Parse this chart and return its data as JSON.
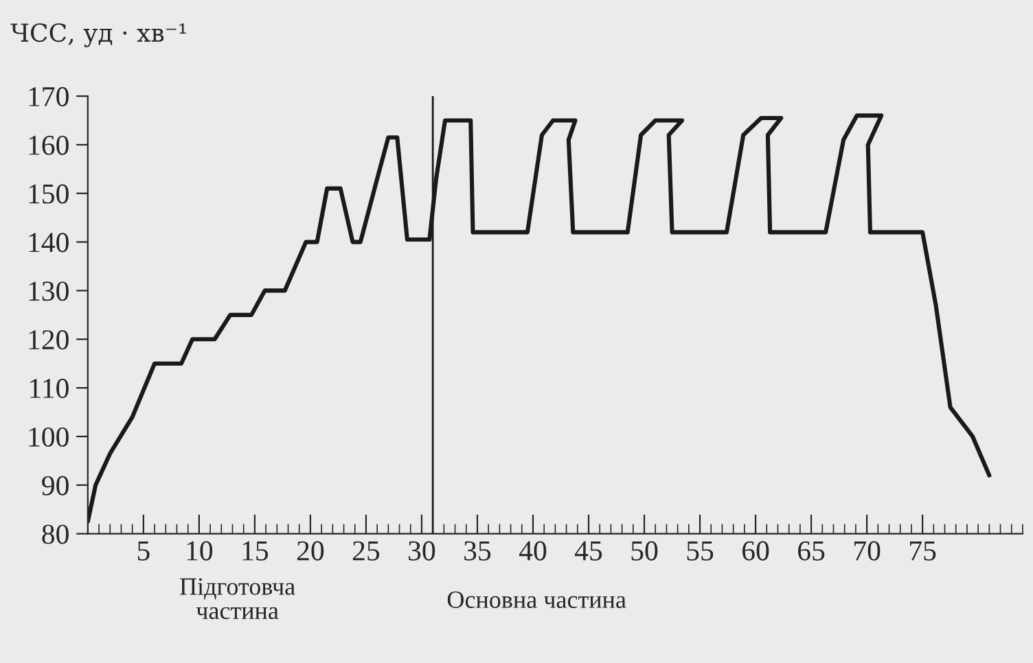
{
  "chart_data": {
    "type": "line",
    "ylabel": "ЧСС, уд · хв⁻¹",
    "annotations": [
      "Підготовча\nчастина",
      "Основна частина"
    ],
    "series": [
      {
        "color": "#1a1a1a",
        "x": [
          0,
          0.7,
          2,
          4,
          6,
          8.4,
          9.4,
          11.4,
          12.8,
          14.7,
          15.9,
          17.7,
          19.6,
          20.6,
          21.5,
          22.7,
          23.8,
          24.5,
          26,
          27,
          27.8,
          28.7,
          30.7,
          31.3,
          32.1,
          34.4,
          34.6,
          39.5,
          40.8,
          41.8,
          43.8,
          43.2,
          43.6,
          48.5,
          49.7,
          51,
          53.4,
          52.2,
          52.5,
          57.4,
          58.9,
          60.5,
          62.3,
          61.1,
          61.3,
          66.3,
          67.9,
          69.1,
          71.3,
          70.1,
          70.3,
          75,
          76.2,
          77.5,
          79.5,
          81
        ],
        "values": [
          82.5,
          90,
          96.5,
          104,
          115,
          115,
          120,
          120,
          125,
          125,
          130,
          130,
          140,
          140,
          151,
          151,
          140,
          140,
          153,
          161.5,
          161.5,
          140.5,
          140.5,
          153,
          165,
          165,
          142,
          142,
          162,
          165,
          165,
          161,
          142,
          142,
          162,
          165,
          165,
          162,
          142,
          142,
          162,
          165.5,
          165.5,
          162,
          142,
          142,
          161,
          166,
          166,
          160,
          142,
          142,
          127,
          106,
          100,
          92
        ]
      }
    ],
    "xlim": [
      0,
      84
    ],
    "ylim": [
      80,
      170
    ],
    "xticks": [
      5,
      10,
      15,
      20,
      25,
      30,
      35,
      40,
      45,
      50,
      55,
      60,
      65,
      70,
      75
    ],
    "yticks": [
      80,
      90,
      100,
      110,
      120,
      130,
      140,
      150,
      160,
      170
    ],
    "ref_lines": [
      {
        "axis": "x",
        "value": 31,
        "color": "#1a1a1a",
        "line_style": "solid"
      }
    ],
    "grid": false,
    "legend": false,
    "marker": "none",
    "line_style": "solid"
  }
}
